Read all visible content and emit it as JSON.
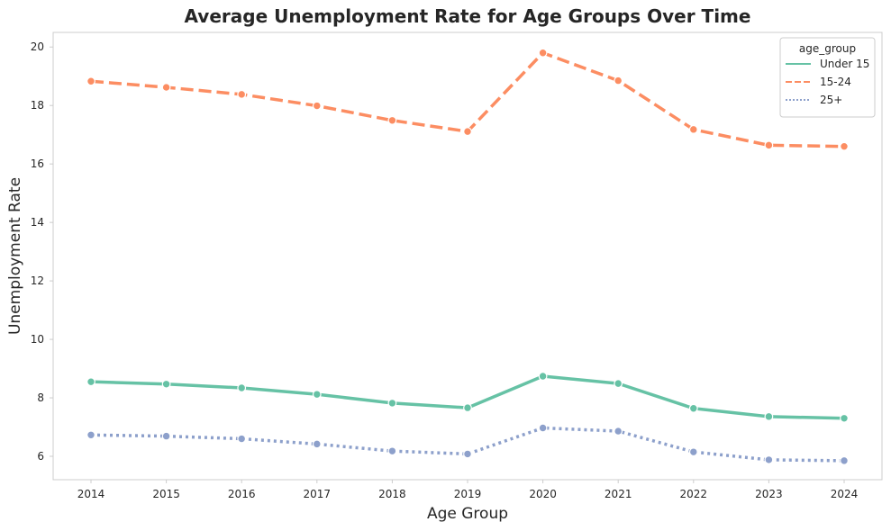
{
  "chart_data": {
    "type": "line",
    "title": "Average Unemployment Rate for Age Groups Over Time",
    "xlabel": "Age Group",
    "ylabel": "Unemployment Rate",
    "x": [
      "2014",
      "2015",
      "2016",
      "2017",
      "2018",
      "2019",
      "2020",
      "2021",
      "2022",
      "2023",
      "2024"
    ],
    "yticks": [
      6,
      8,
      10,
      12,
      14,
      16,
      18,
      20
    ],
    "ylim": [
      5.2,
      20.5
    ],
    "grid": false,
    "legend": {
      "title": "age_group",
      "placement": "upper-right"
    },
    "series": [
      {
        "name": "Under 15",
        "color": "#66c2a5",
        "style": "solid",
        "values": [
          8.55,
          8.47,
          8.34,
          8.12,
          7.82,
          7.66,
          8.74,
          8.49,
          7.64,
          7.36,
          7.3
        ]
      },
      {
        "name": "15-24",
        "color": "#fc8d62",
        "style": "dashed",
        "values": [
          18.83,
          18.62,
          18.38,
          17.99,
          17.49,
          17.11,
          19.8,
          18.85,
          17.18,
          16.64,
          16.6
        ]
      },
      {
        "name": "25+",
        "color": "#8da0cb",
        "style": "dotted",
        "values": [
          6.73,
          6.69,
          6.6,
          6.42,
          6.18,
          6.08,
          6.97,
          6.86,
          6.15,
          5.88,
          5.85
        ]
      }
    ]
  }
}
